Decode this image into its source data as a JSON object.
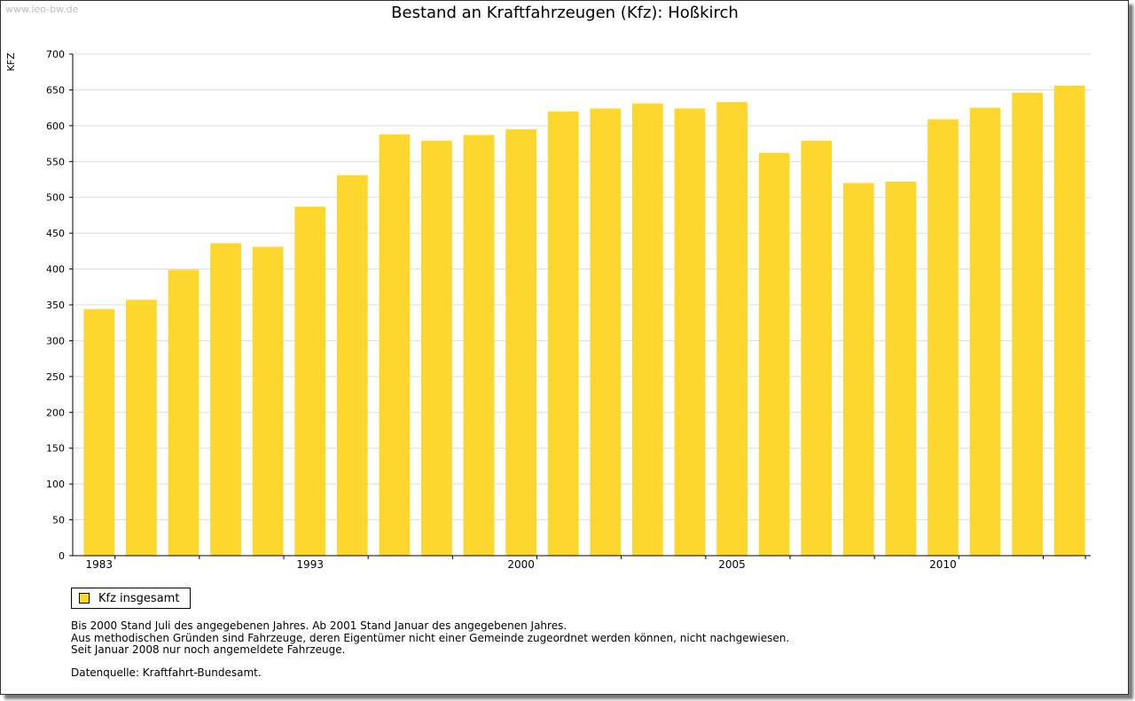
{
  "watermark": "www.leo-bw.de",
  "colors": {
    "bar": "#fdd72e",
    "grid": "#dcdcdc",
    "axis": "#000000"
  },
  "legend": {
    "label": "Kfz insgesamt",
    "icon": "square-swatch-icon"
  },
  "notes": [
    "Bis 2000 Stand Juli des angegebenen Jahres. Ab 2001 Stand Januar des angegebenen Jahres.",
    "Aus methodischen Gründen sind Fahrzeuge, deren Eigentümer nicht einer Gemeinde zugeordnet werden können, nicht nachgewiesen.",
    "Seit Januar 2008 nur noch angemeldete Fahrzeuge."
  ],
  "source": "Datenquelle: Kraftfahrt-Bundesamt.",
  "chart_data": {
    "type": "bar",
    "title": "Bestand an Kraftfahrzeugen (Kfz): Hoßkirch",
    "xlabel": "",
    "ylabel": "KFZ",
    "ylim": [
      0,
      700
    ],
    "yticks": [
      0,
      50,
      100,
      150,
      200,
      250,
      300,
      350,
      400,
      450,
      500,
      550,
      600,
      650,
      700
    ],
    "grid": true,
    "legend_position": "bottom-left",
    "categories": [
      "1983",
      "",
      "",
      "",
      "",
      "1993",
      "",
      "",
      "",
      "",
      "2000",
      "",
      "",
      "",
      "",
      "2005",
      "",
      "",
      "",
      "",
      "2010",
      "",
      "",
      ""
    ],
    "xtick_labels": [
      "1983",
      "1993",
      "2000",
      "2005",
      "2010"
    ],
    "series": [
      {
        "name": "Kfz insgesamt",
        "values": [
          344,
          357,
          399,
          436,
          431,
          487,
          531,
          588,
          579,
          587,
          595,
          620,
          624,
          631,
          624,
          633,
          562,
          579,
          520,
          522,
          609,
          625,
          646,
          656
        ]
      }
    ]
  }
}
